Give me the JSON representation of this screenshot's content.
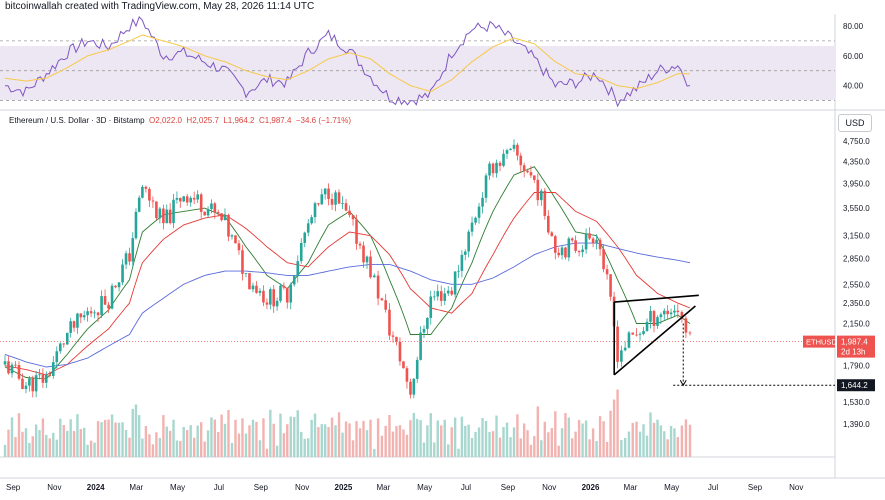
{
  "header": {
    "text": "bitcoinwallah created with TradingView.com, May 28, 2026 11:14 UTC"
  },
  "legend": {
    "symbol": "Ethereum / U.S. Dollar · 3D · Bitstamp",
    "open": "O2,022.0",
    "high": "H2,025.7",
    "low": "L1,964.2",
    "close": "C1,987.4",
    "change": "−34.6 (−1.71%)"
  },
  "currency_button": "USD",
  "colors": {
    "up": "#26a69a",
    "down": "#ef5350",
    "rsi": "#7e57c2",
    "rsi_ma": "#f7c948",
    "rsi_band": "#e8e0f0",
    "ma_fast": "#2e7d32",
    "ma_mid": "#e53935",
    "ma_slow": "#5b6bdc",
    "price_line": "#ef5350"
  },
  "chart_data": [
    {
      "type": "line",
      "name": "RSI",
      "yticks": [
        "80.00",
        "60.00",
        "40.00"
      ],
      "ylim": [
        25,
        88
      ],
      "levels": [
        70,
        50,
        30
      ],
      "x": [
        "2023-08-20",
        "2023-09-20",
        "2023-10-20",
        "2023-11-20",
        "2023-12-20",
        "2024-01-20",
        "2024-02-20",
        "2024-03-10",
        "2024-04-10",
        "2024-05-10",
        "2024-06-10",
        "2024-07-10",
        "2024-08-10",
        "2024-09-10",
        "2024-10-10",
        "2024-11-10",
        "2024-12-10",
        "2025-01-10",
        "2025-02-10",
        "2025-03-10",
        "2025-04-10",
        "2025-05-10",
        "2025-06-10",
        "2025-07-10",
        "2025-08-10",
        "2025-09-10",
        "2025-10-10",
        "2025-11-10",
        "2025-12-10",
        "2026-01-10",
        "2026-02-10",
        "2026-03-10",
        "2026-04-10",
        "2026-05-10",
        "2026-05-28"
      ],
      "values": [
        40,
        36,
        48,
        62,
        70,
        66,
        80,
        84,
        60,
        62,
        56,
        50,
        36,
        44,
        42,
        62,
        74,
        64,
        46,
        32,
        30,
        34,
        62,
        78,
        80,
        70,
        58,
        40,
        42,
        48,
        30,
        38,
        50,
        54,
        40
      ],
      "ma": [
        45,
        43,
        45,
        52,
        60,
        64,
        70,
        74,
        70,
        66,
        60,
        56,
        50,
        46,
        44,
        50,
        58,
        62,
        58,
        48,
        40,
        36,
        44,
        56,
        66,
        72,
        68,
        56,
        48,
        46,
        40,
        38,
        42,
        48,
        48
      ]
    },
    {
      "type": "candlestick",
      "title": "Ethereum / U.S. Dollar · 3D · Bitstamp",
      "yticks": [
        "4,750.0",
        "4,350.0",
        "3,950.0",
        "3,550.0",
        "3,150.0",
        "2,850.0",
        "2,550.0",
        "2,350.0",
        "2,150.0",
        "1,790.0",
        "1,530.0",
        "1,390.0"
      ],
      "ylim": [
        1230,
        4900
      ],
      "xticks": [
        "Sep",
        "Nov",
        "2024",
        "Mar",
        "May",
        "Jul",
        "Sep",
        "Nov",
        "2025",
        "Mar",
        "May",
        "Jul",
        "Sep",
        "Nov",
        "2026",
        "Mar",
        "May",
        "Jul",
        "Sep",
        "Nov"
      ],
      "x": [
        "2023-08-20",
        "2023-09-20",
        "2023-10-20",
        "2023-11-20",
        "2023-12-20",
        "2024-01-20",
        "2024-02-20",
        "2024-03-10",
        "2024-04-10",
        "2024-05-10",
        "2024-06-10",
        "2024-07-10",
        "2024-08-10",
        "2024-09-10",
        "2024-10-10",
        "2024-11-10",
        "2024-12-10",
        "2025-01-10",
        "2025-02-10",
        "2025-03-10",
        "2025-04-10",
        "2025-05-10",
        "2025-06-10",
        "2025-07-10",
        "2025-08-10",
        "2025-09-10",
        "2025-10-10",
        "2025-11-10",
        "2025-12-10",
        "2026-01-10",
        "2026-02-10",
        "2026-03-10",
        "2026-04-10",
        "2026-05-10",
        "2026-05-28"
      ],
      "close": [
        1800,
        1650,
        1700,
        2050,
        2250,
        2400,
        2900,
        3900,
        3300,
        3800,
        3600,
        3300,
        2650,
        2400,
        2450,
        3300,
        3850,
        3350,
        2700,
        2100,
        1600,
        2400,
        2500,
        3300,
        4300,
        4500,
        4000,
        3000,
        3000,
        3200,
        1900,
        2050,
        2250,
        2300,
        1987
      ],
      "ma_fast": [
        1780,
        1700,
        1690,
        1880,
        2100,
        2280,
        2600,
        3200,
        3450,
        3500,
        3550,
        3420,
        3000,
        2650,
        2500,
        2800,
        3300,
        3500,
        3150,
        2600,
        2050,
        2050,
        2300,
        2800,
        3500,
        4100,
        4250,
        3700,
        3200,
        3150,
        2600,
        2150,
        2150,
        2230,
        2150
      ],
      "ma_mid": [
        1790,
        1760,
        1720,
        1800,
        1950,
        2100,
        2350,
        2800,
        3100,
        3300,
        3400,
        3450,
        3250,
        3000,
        2800,
        2750,
        3000,
        3200,
        3150,
        2900,
        2500,
        2300,
        2250,
        2450,
        2900,
        3400,
        3800,
        3800,
        3500,
        3350,
        3000,
        2650,
        2450,
        2350,
        2300
      ],
      "ma_slow": [
        1880,
        1820,
        1780,
        1800,
        1850,
        1950,
        2050,
        2250,
        2400,
        2550,
        2650,
        2700,
        2700,
        2680,
        2650,
        2650,
        2700,
        2750,
        2780,
        2780,
        2700,
        2600,
        2550,
        2550,
        2620,
        2750,
        2900,
        3000,
        3050,
        3050,
        2980,
        2920,
        2870,
        2830,
        2800
      ],
      "current_price": "1,987.4",
      "current_label": "ETHUSD",
      "countdown": "2d 13h",
      "target_price": "1,644.2"
    }
  ]
}
